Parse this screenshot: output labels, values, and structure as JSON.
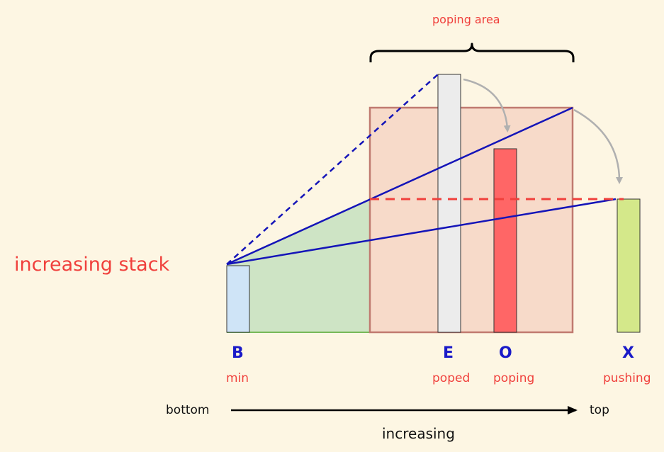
{
  "title": "increasing stack",
  "area_label": "poping area",
  "bars": [
    {
      "letter": "B",
      "caption": "min",
      "color": "#cfe4f7"
    },
    {
      "letter": "E",
      "caption": "poped",
      "color": "#ececec"
    },
    {
      "letter": "O",
      "caption": "poping",
      "color": "#ff6666"
    },
    {
      "letter": "X",
      "caption": "pushing",
      "color": "#d4e88a"
    }
  ],
  "axis": {
    "start": "bottom",
    "end": "top",
    "label": "increasing"
  },
  "colors": {
    "text_red": "#f0403c",
    "text_blue": "#1a1ac8",
    "line_blue": "#1414b8",
    "area_fill": "#f2c9b8",
    "area_border": "#c07a70",
    "green_fill": "#c6e0c0",
    "arrow_gray": "#b0b0b0"
  }
}
